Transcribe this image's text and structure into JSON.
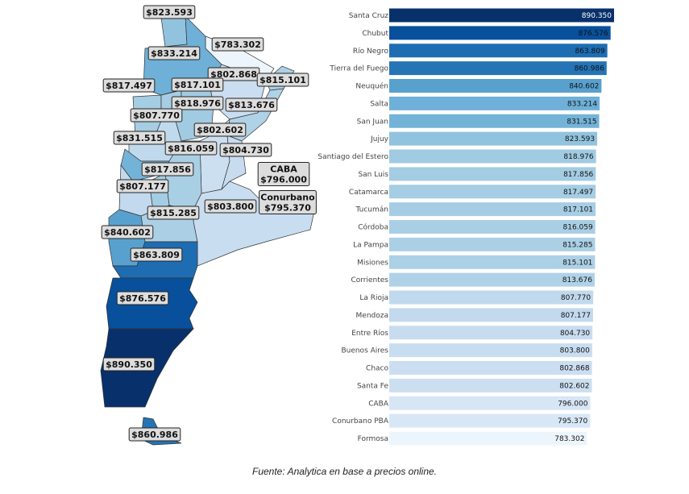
{
  "chart_data": [
    {
      "type": "map",
      "regions": [
        {
          "name": "Jujuy",
          "label": "$823.593",
          "value": 823593
        },
        {
          "name": "Formosa",
          "label": "$783.302",
          "value": 783302
        },
        {
          "name": "Salta",
          "label": "$833.214",
          "value": 833214
        },
        {
          "name": "Chaco",
          "label": "$802.868",
          "value": 802868
        },
        {
          "name": "Misiones",
          "label": "$815.101",
          "value": 815101
        },
        {
          "name": "Catamarca",
          "label": "$817.497",
          "value": 817497
        },
        {
          "name": "Tucumán",
          "label": "$817.101",
          "value": 817101
        },
        {
          "name": "Santiago del Estero",
          "label": "$818.976",
          "value": 818976
        },
        {
          "name": "Corrientes",
          "label": "$813.676",
          "value": 813676
        },
        {
          "name": "La Rioja",
          "label": "$807.770",
          "value": 807770
        },
        {
          "name": "Santa Fe",
          "label": "$802.602",
          "value": 802602
        },
        {
          "name": "San Juan",
          "label": "$831.515",
          "value": 831515
        },
        {
          "name": "Córdoba",
          "label": "$816.059",
          "value": 816059
        },
        {
          "name": "Entre Ríos",
          "label": "$804.730",
          "value": 804730
        },
        {
          "name": "San Luis",
          "label": "$817.856",
          "value": 817856
        },
        {
          "name": "CABA",
          "label": "CABA\n$796.000",
          "value": 796000
        },
        {
          "name": "Mendoza",
          "label": "$807.177",
          "value": 807177
        },
        {
          "name": "Buenos Aires",
          "label": "$803.800",
          "value": 803800
        },
        {
          "name": "Conurbano PBA",
          "label": "Conurbano\n$795.370",
          "value": 795370
        },
        {
          "name": "La Pampa",
          "label": "$815.285",
          "value": 815285
        },
        {
          "name": "Neuquén",
          "label": "$840.602",
          "value": 840602
        },
        {
          "name": "Río Negro",
          "label": "$863.809",
          "value": 863809
        },
        {
          "name": "Chubut",
          "label": "$876.576",
          "value": 876576
        },
        {
          "name": "Santa Cruz",
          "label": "$890.350",
          "value": 890350
        },
        {
          "name": "Tierra del Fuego",
          "label": "$860.986",
          "value": 860986
        }
      ],
      "colorscale": [
        "#f7fbff",
        "#08306b"
      ]
    },
    {
      "type": "bar",
      "orientation": "horizontal",
      "categories": [
        "Santa Cruz",
        "Chubut",
        "Río Negro",
        "Tierra del Fuego",
        "Neuquén",
        "Salta",
        "San Juan",
        "Jujuy",
        "Santiago del Estero",
        "San Luis",
        "Catamarca",
        "Tucumán",
        "Córdoba",
        "La Pampa",
        "Misiones",
        "Corrientes",
        "La Rioja",
        "Mendoza",
        "Entre Ríos",
        "Buenos Aires",
        "Chaco",
        "Santa Fe",
        "CABA",
        "Conurbano PBA",
        "Formosa"
      ],
      "values": [
        890.35,
        876.576,
        863.809,
        860.986,
        840.602,
        833.214,
        831.515,
        823.593,
        818.976,
        817.856,
        817.497,
        817.101,
        816.059,
        815.285,
        815.101,
        813.676,
        807.77,
        807.177,
        804.73,
        803.8,
        802.868,
        802.602,
        796.0,
        795.37,
        783.302
      ],
      "value_labels": [
        "890.350",
        "876.576",
        "863.809",
        "860.986",
        "840.602",
        "833.214",
        "831.515",
        "823.593",
        "818.976",
        "817.856",
        "817.497",
        "817.101",
        "816.059",
        "815.285",
        "815.101",
        "813.676",
        "807.770",
        "807.177",
        "804.730",
        "803.800",
        "802.868",
        "802.602",
        "796.000",
        "795.370",
        "783.302"
      ],
      "xlim": [
        0,
        890.35
      ],
      "colorscale": [
        "#f7fbff",
        "#08306b"
      ]
    }
  ],
  "caption": "Fuente: Analytica en base a precios online."
}
